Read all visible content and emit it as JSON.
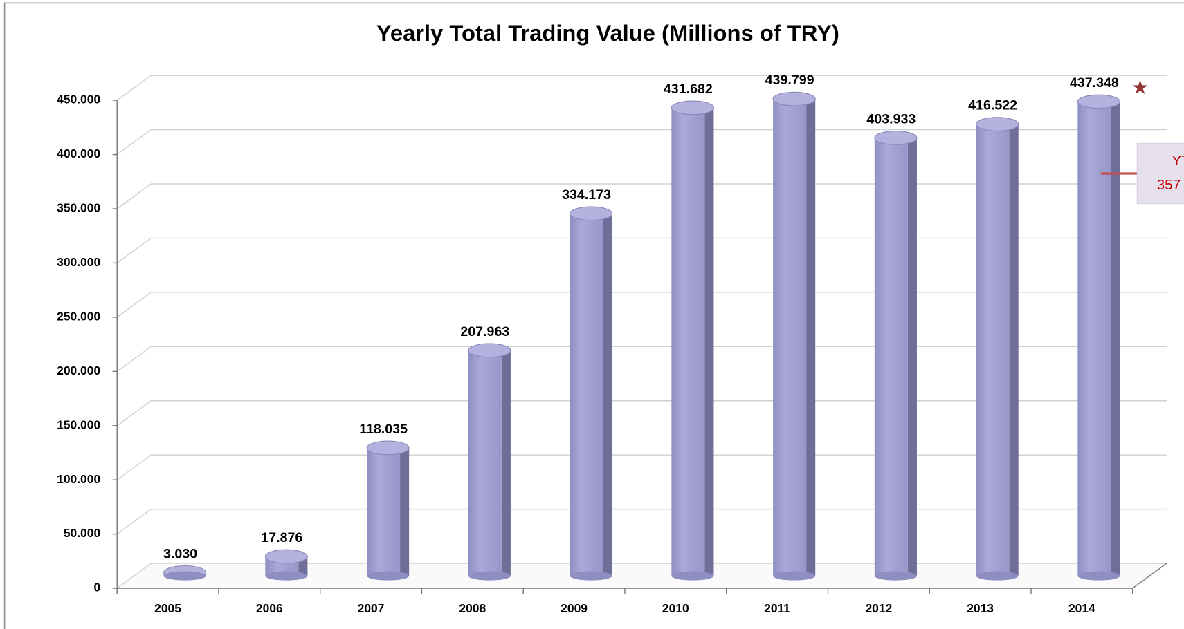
{
  "chart_data": {
    "type": "bar",
    "title": "Yearly Total Trading Value (Millions of TRY)",
    "categories": [
      "2005",
      "2006",
      "2007",
      "2008",
      "2009",
      "2010",
      "2011",
      "2012",
      "2013",
      "2014"
    ],
    "values": [
      3030,
      17876,
      118035,
      207963,
      334173,
      431682,
      439799,
      403933,
      416522,
      437348
    ],
    "value_labels": [
      "3.030",
      "17.876",
      "118.035",
      "207.963",
      "334.173",
      "431.682",
      "439.799",
      "403.933",
      "416.522",
      "437.348"
    ],
    "color": "#a09fcf",
    "ylim": [
      0,
      450000
    ],
    "yticks": [
      {
        "value": 0,
        "label": "0"
      },
      {
        "value": 50000,
        "label": "50.000"
      },
      {
        "value": 100000,
        "label": "100.000"
      },
      {
        "value": 150000,
        "label": "150.000"
      },
      {
        "value": 200000,
        "label": "200.000"
      },
      {
        "value": 250000,
        "label": "250.000"
      },
      {
        "value": 300000,
        "label": "300.000"
      },
      {
        "value": 350000,
        "label": "350.000"
      },
      {
        "value": 400000,
        "label": "400.000"
      },
      {
        "value": 450000,
        "label": "450.000"
      }
    ],
    "grid": true,
    "annotation": [
      "YT",
      "357"
    ]
  }
}
